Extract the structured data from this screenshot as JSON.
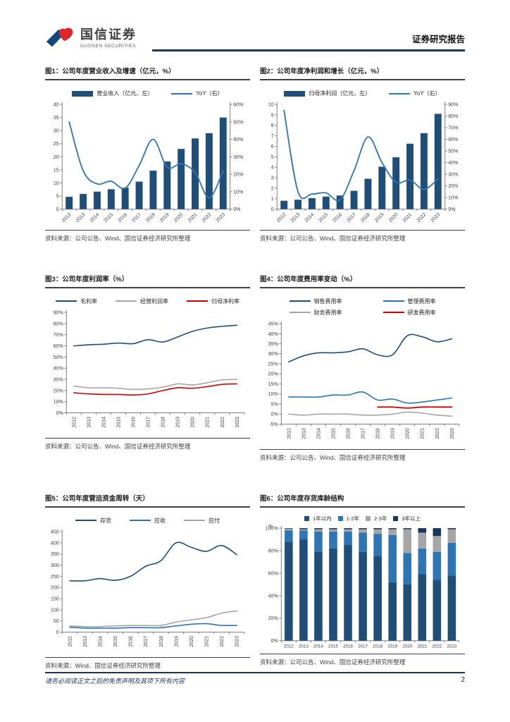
{
  "header": {
    "brand_cn": "国信证券",
    "brand_en": "GUOSEN SECURITIES",
    "report_type": "证券研究报告"
  },
  "footer": {
    "disclaimer": "请务必阅读正文之后的免责声明及其项下所有内容",
    "page_number": "2"
  },
  "colors": {
    "logo_blue": "#12477d",
    "logo_red": "#e0252b",
    "header_rule": "#17375e",
    "dark_blue": "#1f4e79",
    "mid_blue": "#2e75b6",
    "gray": "#a6a6a6",
    "red": "#d00000"
  },
  "figures": [
    {
      "title": "图1：公司年度营业收入及增速（亿元，%）",
      "source": "资料来源：公司公告、Wind、国信证券经济研究所整理"
    },
    {
      "title": "图2：公司年度净利润和增长（亿元，%）",
      "source": "资料来源：公司公告、Wind、国信证券经济研究所整理"
    },
    {
      "title": "图3：公司年度利润率（%）",
      "source": "资料来源：公司公告、Wind、国信证券经济研究所整理"
    },
    {
      "title": "图4：公司年度费用率变动（%）",
      "source": "资料来源：公司公告、Wind、国信证券经济研究所整理"
    },
    {
      "title": "图5：公司年度营运资金周转（天）",
      "source": "资料来源：Wind、国信证券经济研究所整理"
    },
    {
      "title": "图6：公司年度存货库龄结构",
      "source": "资料来源：公司公告、Wind、国信证券经济研究所整理"
    }
  ],
  "chart_data": [
    {
      "type": "bar+line",
      "title": "公司年度营业收入及增速（亿元，%）",
      "categories": [
        "2012",
        "2013",
        "2014",
        "2015",
        "2016",
        "2017",
        "2018",
        "2019",
        "2020",
        "2021",
        "2022",
        "2023"
      ],
      "series": [
        {
          "name": "营业收入（亿元、左）",
          "type": "bar",
          "axis": "left",
          "color": "#1f4e79",
          "values": [
            4.7,
            5.8,
            6.7,
            7.6,
            8.2,
            10.5,
            14.7,
            18.2,
            23,
            27,
            29,
            35
          ]
        },
        {
          "name": "YoY（右）",
          "type": "line",
          "axis": "right",
          "color": "#2e75b6",
          "width": 1.8,
          "values": [
            50,
            22,
            14.5,
            16,
            12,
            25,
            40,
            24,
            26,
            21,
            6.5,
            22
          ]
        }
      ],
      "left_axis": {
        "min": 0,
        "max": 40,
        "step": 5,
        "format": "num"
      },
      "right_axis": {
        "min": 0,
        "max": 60,
        "step": 10,
        "format": "pct"
      },
      "x_label_rotate": -45
    },
    {
      "type": "bar+line",
      "title": "公司年度净利润和增长（亿元，%）",
      "categories": [
        "2012",
        "2013",
        "2014",
        "2015",
        "2016",
        "2017",
        "2018",
        "2019",
        "2020",
        "2021",
        "2022",
        "2023"
      ],
      "series": [
        {
          "name": "归母净利润（亿元，左）",
          "type": "bar",
          "axis": "left",
          "color": "#1f4e79",
          "values": [
            0.8,
            0.9,
            1.05,
            1.2,
            1.3,
            1.75,
            2.9,
            4.05,
            4.95,
            6.25,
            7.25,
            9.1
          ]
        },
        {
          "name": "YoY（右）",
          "type": "line",
          "axis": "right",
          "color": "#2e75b6",
          "width": 1.8,
          "values": [
            85,
            15,
            13,
            14,
            8,
            33,
            62,
            40,
            23,
            25,
            17,
            26
          ]
        }
      ],
      "left_axis": {
        "min": 0,
        "max": 10,
        "step": 1,
        "format": "num"
      },
      "right_axis": {
        "min": 0,
        "max": 90,
        "step": 10,
        "format": "pct"
      },
      "x_label_rotate": -45
    },
    {
      "type": "line",
      "title": "公司年度利润率（%）",
      "categories": [
        "2012",
        "2013",
        "2014",
        "2015",
        "2016",
        "2017",
        "2018",
        "2019",
        "2020",
        "2021",
        "2022",
        "2023"
      ],
      "series": [
        {
          "name": "毛利率",
          "type": "line",
          "axis": "left",
          "color": "#1f4e79",
          "values": [
            60,
            61,
            61.5,
            62.5,
            62,
            65.5,
            63.5,
            68,
            73,
            76,
            77.5,
            78.5
          ]
        },
        {
          "name": "经营利润率",
          "type": "line",
          "axis": "left",
          "color": "#a6a6a6",
          "values": [
            24,
            22.5,
            22.5,
            22,
            21,
            21.5,
            23,
            26,
            25,
            27,
            29.5,
            30
          ]
        },
        {
          "name": "归母净利率",
          "type": "line",
          "axis": "left",
          "color": "#d00000",
          "values": [
            18,
            17,
            16.5,
            16.5,
            16,
            17,
            20,
            22.5,
            22,
            23.5,
            25.5,
            26
          ]
        }
      ],
      "left_axis": {
        "min": 0,
        "max": 90,
        "step": 10,
        "format": "pct"
      },
      "x_label_rotate": -90
    },
    {
      "type": "line",
      "title": "公司年度费用率变动（%）",
      "legend_columns": 2,
      "categories": [
        "2012",
        "2013",
        "2014",
        "2015",
        "2016",
        "2017",
        "2018",
        "2019",
        "2020",
        "2021",
        "2022",
        "2023"
      ],
      "series": [
        {
          "name": "销售费用率",
          "type": "line",
          "axis": "left",
          "color": "#1f4e79",
          "values": [
            26,
            29,
            30.5,
            30.5,
            31,
            32.5,
            29.5,
            29.5,
            39,
            38.5,
            36,
            37.5
          ]
        },
        {
          "name": "管理费用率",
          "type": "line",
          "axis": "left",
          "color": "#2e75b6",
          "values": [
            8.5,
            8.5,
            8.5,
            9.5,
            9.5,
            11,
            7,
            7.5,
            5.5,
            6,
            7,
            8
          ]
        },
        {
          "name": "财务费用率",
          "type": "line",
          "axis": "left",
          "color": "#a6a6a6",
          "values": [
            0,
            -0.5,
            0,
            0,
            0,
            -0.5,
            -0.5,
            0,
            1,
            0.5,
            -0.5,
            -1
          ]
        },
        {
          "name": "研发费用率",
          "type": "line",
          "axis": "left",
          "color": "#d00000",
          "width": 1.8,
          "values": [
            null,
            null,
            null,
            null,
            null,
            null,
            3.5,
            3.5,
            3,
            3.5,
            3.5,
            3.5
          ]
        }
      ],
      "left_axis": {
        "min": -5,
        "max": 45,
        "step": 5,
        "format": "pct"
      },
      "x_label_rotate": -90
    },
    {
      "type": "line",
      "title": "公司年度营运资金周转（天）",
      "categories": [
        "2012",
        "2013",
        "2014",
        "2015",
        "2016",
        "2017",
        "2018",
        "2019",
        "2020",
        "2021",
        "2022",
        "2023"
      ],
      "series": [
        {
          "name": "存货",
          "type": "line",
          "axis": "left",
          "color": "#1f4e79",
          "values": [
            230,
            230,
            240,
            232,
            250,
            295,
            320,
            400,
            380,
            362,
            388,
            347
          ]
        },
        {
          "name": "应收",
          "type": "line",
          "axis": "left",
          "color": "#2e75b6",
          "values": [
            22,
            18,
            18,
            18,
            20,
            20,
            20,
            28,
            35,
            38,
            30,
            30
          ]
        },
        {
          "name": "应付",
          "type": "line",
          "axis": "left",
          "color": "#a6a6a6",
          "values": [
            28,
            25,
            25,
            28,
            30,
            30,
            30,
            45,
            55,
            65,
            85,
            95
          ]
        }
      ],
      "left_axis": {
        "min": 0,
        "max": 450,
        "step": 50,
        "format": "num"
      },
      "x_label_rotate": -90
    },
    {
      "type": "stacked-bar",
      "title": "公司年度存货库龄结构",
      "y_unit": "%",
      "categories": [
        "2012",
        "2013",
        "2014",
        "2015",
        "2016",
        "2017",
        "2018",
        "2019",
        "2020",
        "2021",
        "2022",
        "2023"
      ],
      "series": [
        {
          "name": "1年以内",
          "color": "#1f4e79",
          "values": [
            88,
            90,
            79,
            82,
            85,
            79,
            75,
            52,
            50,
            59,
            54,
            58
          ]
        },
        {
          "name": "1-2年",
          "color": "#2e75b6",
          "values": [
            10,
            8,
            18,
            15,
            12,
            17,
            20,
            42,
            28,
            23,
            25,
            29
          ]
        },
        {
          "name": "2-3年",
          "color": "#a6a6a6",
          "values": [
            1.5,
            1,
            2,
            2,
            2,
            3,
            4,
            5,
            21,
            14,
            14,
            12
          ]
        },
        {
          "name": "3年以上",
          "color": "#17375e",
          "values": [
            0.5,
            1,
            1,
            1,
            1,
            1,
            1,
            1,
            1,
            4,
            7,
            1
          ]
        }
      ],
      "left_axis": {
        "min": 0,
        "max": 100,
        "step": 20,
        "format": "pct"
      },
      "x_label_rotate": 0
    }
  ]
}
